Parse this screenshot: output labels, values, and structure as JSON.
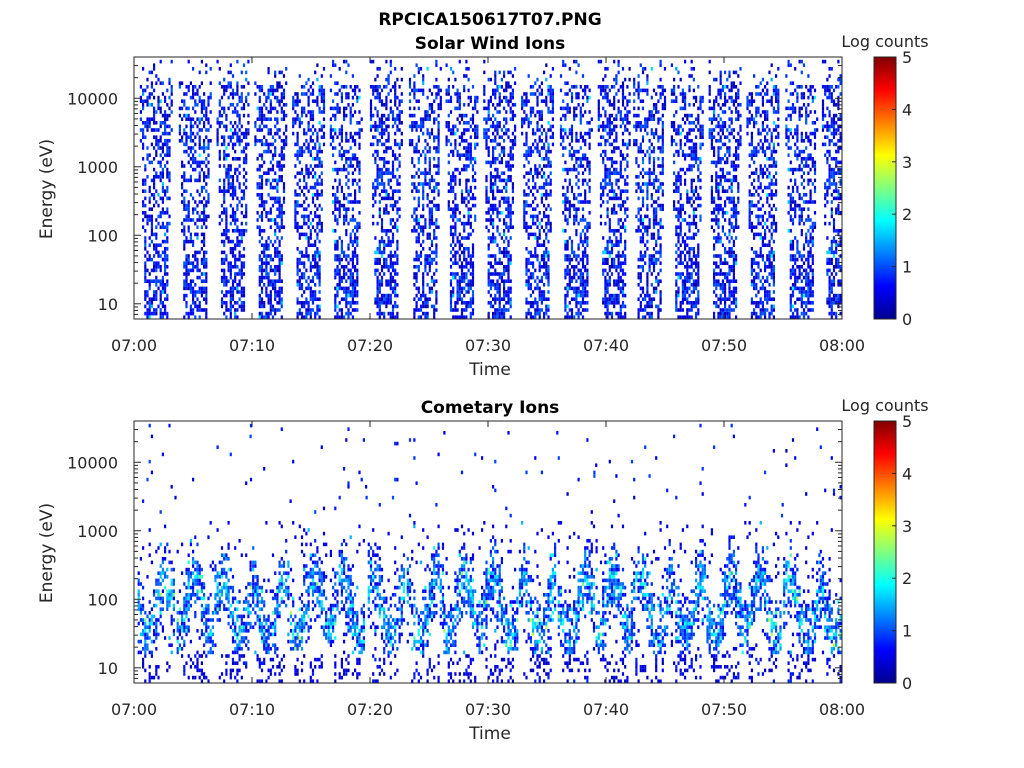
{
  "figure": {
    "title": "RPCICA150617T07.PNG"
  },
  "chart_data": [
    {
      "type": "heatmap",
      "title": "Solar Wind Ions",
      "xlabel": "Time",
      "ylabel": "Energy (eV)",
      "x_range": [
        "07:00",
        "08:00"
      ],
      "x_ticks": [
        "07:00",
        "07:10",
        "07:20",
        "07:30",
        "07:40",
        "07:50",
        "08:00"
      ],
      "y_scale": "log",
      "y_range": [
        6,
        40000
      ],
      "y_ticks": [
        "10",
        "100",
        "1000",
        "10000"
      ],
      "colorbar": {
        "label": "Log counts",
        "range": [
          0,
          5
        ],
        "ticks": [
          "0",
          "1",
          "2",
          "3",
          "4",
          "5"
        ],
        "colormap": "jet"
      },
      "pattern": "periodic vertical bursts of scattered counts across all energies, mostly 0–1.5 log counts",
      "burst_times_min": [
        1.8,
        5.1,
        8.3,
        11.5,
        14.7,
        17.9,
        21.3,
        24.6,
        27.7,
        30.9,
        34.1,
        37.4,
        40.6,
        43.6,
        46.8,
        50.0,
        53.2,
        56.5,
        59.6
      ]
    },
    {
      "type": "heatmap",
      "title": "Cometary Ions",
      "xlabel": "Time",
      "ylabel": "Energy (eV)",
      "x_range": [
        "07:00",
        "08:00"
      ],
      "x_ticks": [
        "07:00",
        "07:10",
        "07:20",
        "07:30",
        "07:40",
        "07:50",
        "08:00"
      ],
      "y_scale": "log",
      "y_range": [
        6,
        40000
      ],
      "y_ticks": [
        "10",
        "100",
        "1000",
        "10000"
      ],
      "colorbar": {
        "label": "Log counts",
        "range": [
          0,
          5
        ],
        "ticks": [
          "0",
          "1",
          "2",
          "3",
          "4",
          "5"
        ],
        "colormap": "jet"
      },
      "pattern": "low-energy bands (30–500 eV) with brighter arcs up to ~2.8 log counts, sparse counts above 1 keV",
      "burst_times_min": [
        1.8,
        5.1,
        8.3,
        11.5,
        14.7,
        17.9,
        21.3,
        24.6,
        27.7,
        30.9,
        34.1,
        37.4,
        40.6,
        43.6,
        46.8,
        50.0,
        53.2,
        56.5,
        59.6
      ]
    }
  ]
}
